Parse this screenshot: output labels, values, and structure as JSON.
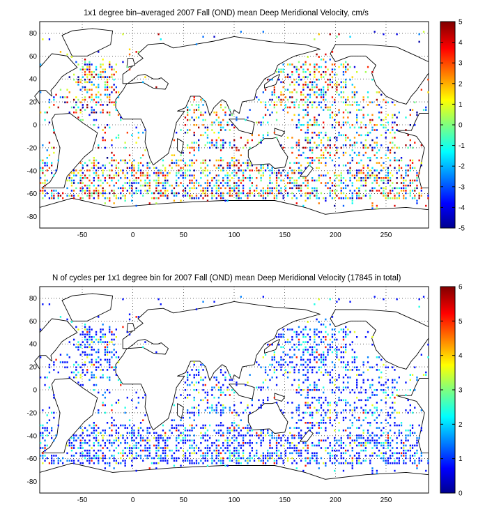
{
  "panels": [
    {
      "title": "1x1 degree bin–averaged 2007 Fall (OND) mean Deep Meridional Velocity, cm/s",
      "colorbar": {
        "min": -5,
        "max": 5,
        "ticks": [
          5,
          4,
          3,
          2,
          1,
          0,
          -1,
          -2,
          -3,
          -4,
          -5
        ]
      }
    },
    {
      "title": "N of cycles per 1x1 degree bin for 2007 Fall (OND) mean Deep Meridional Velocity (17845 in total)",
      "colorbar": {
        "min": 0,
        "max": 6,
        "ticks": [
          6,
          5,
          4,
          3,
          2,
          1,
          0
        ]
      }
    }
  ],
  "axes": {
    "x_ticks": [
      -50,
      0,
      50,
      100,
      150,
      200,
      250
    ],
    "y_ticks": [
      80,
      60,
      40,
      20,
      0,
      -20,
      -40,
      -60,
      -80
    ],
    "xlim": [
      -92,
      292
    ],
    "ylim": [
      -90,
      90
    ],
    "grid": "dotted"
  },
  "colormap": "jet"
}
